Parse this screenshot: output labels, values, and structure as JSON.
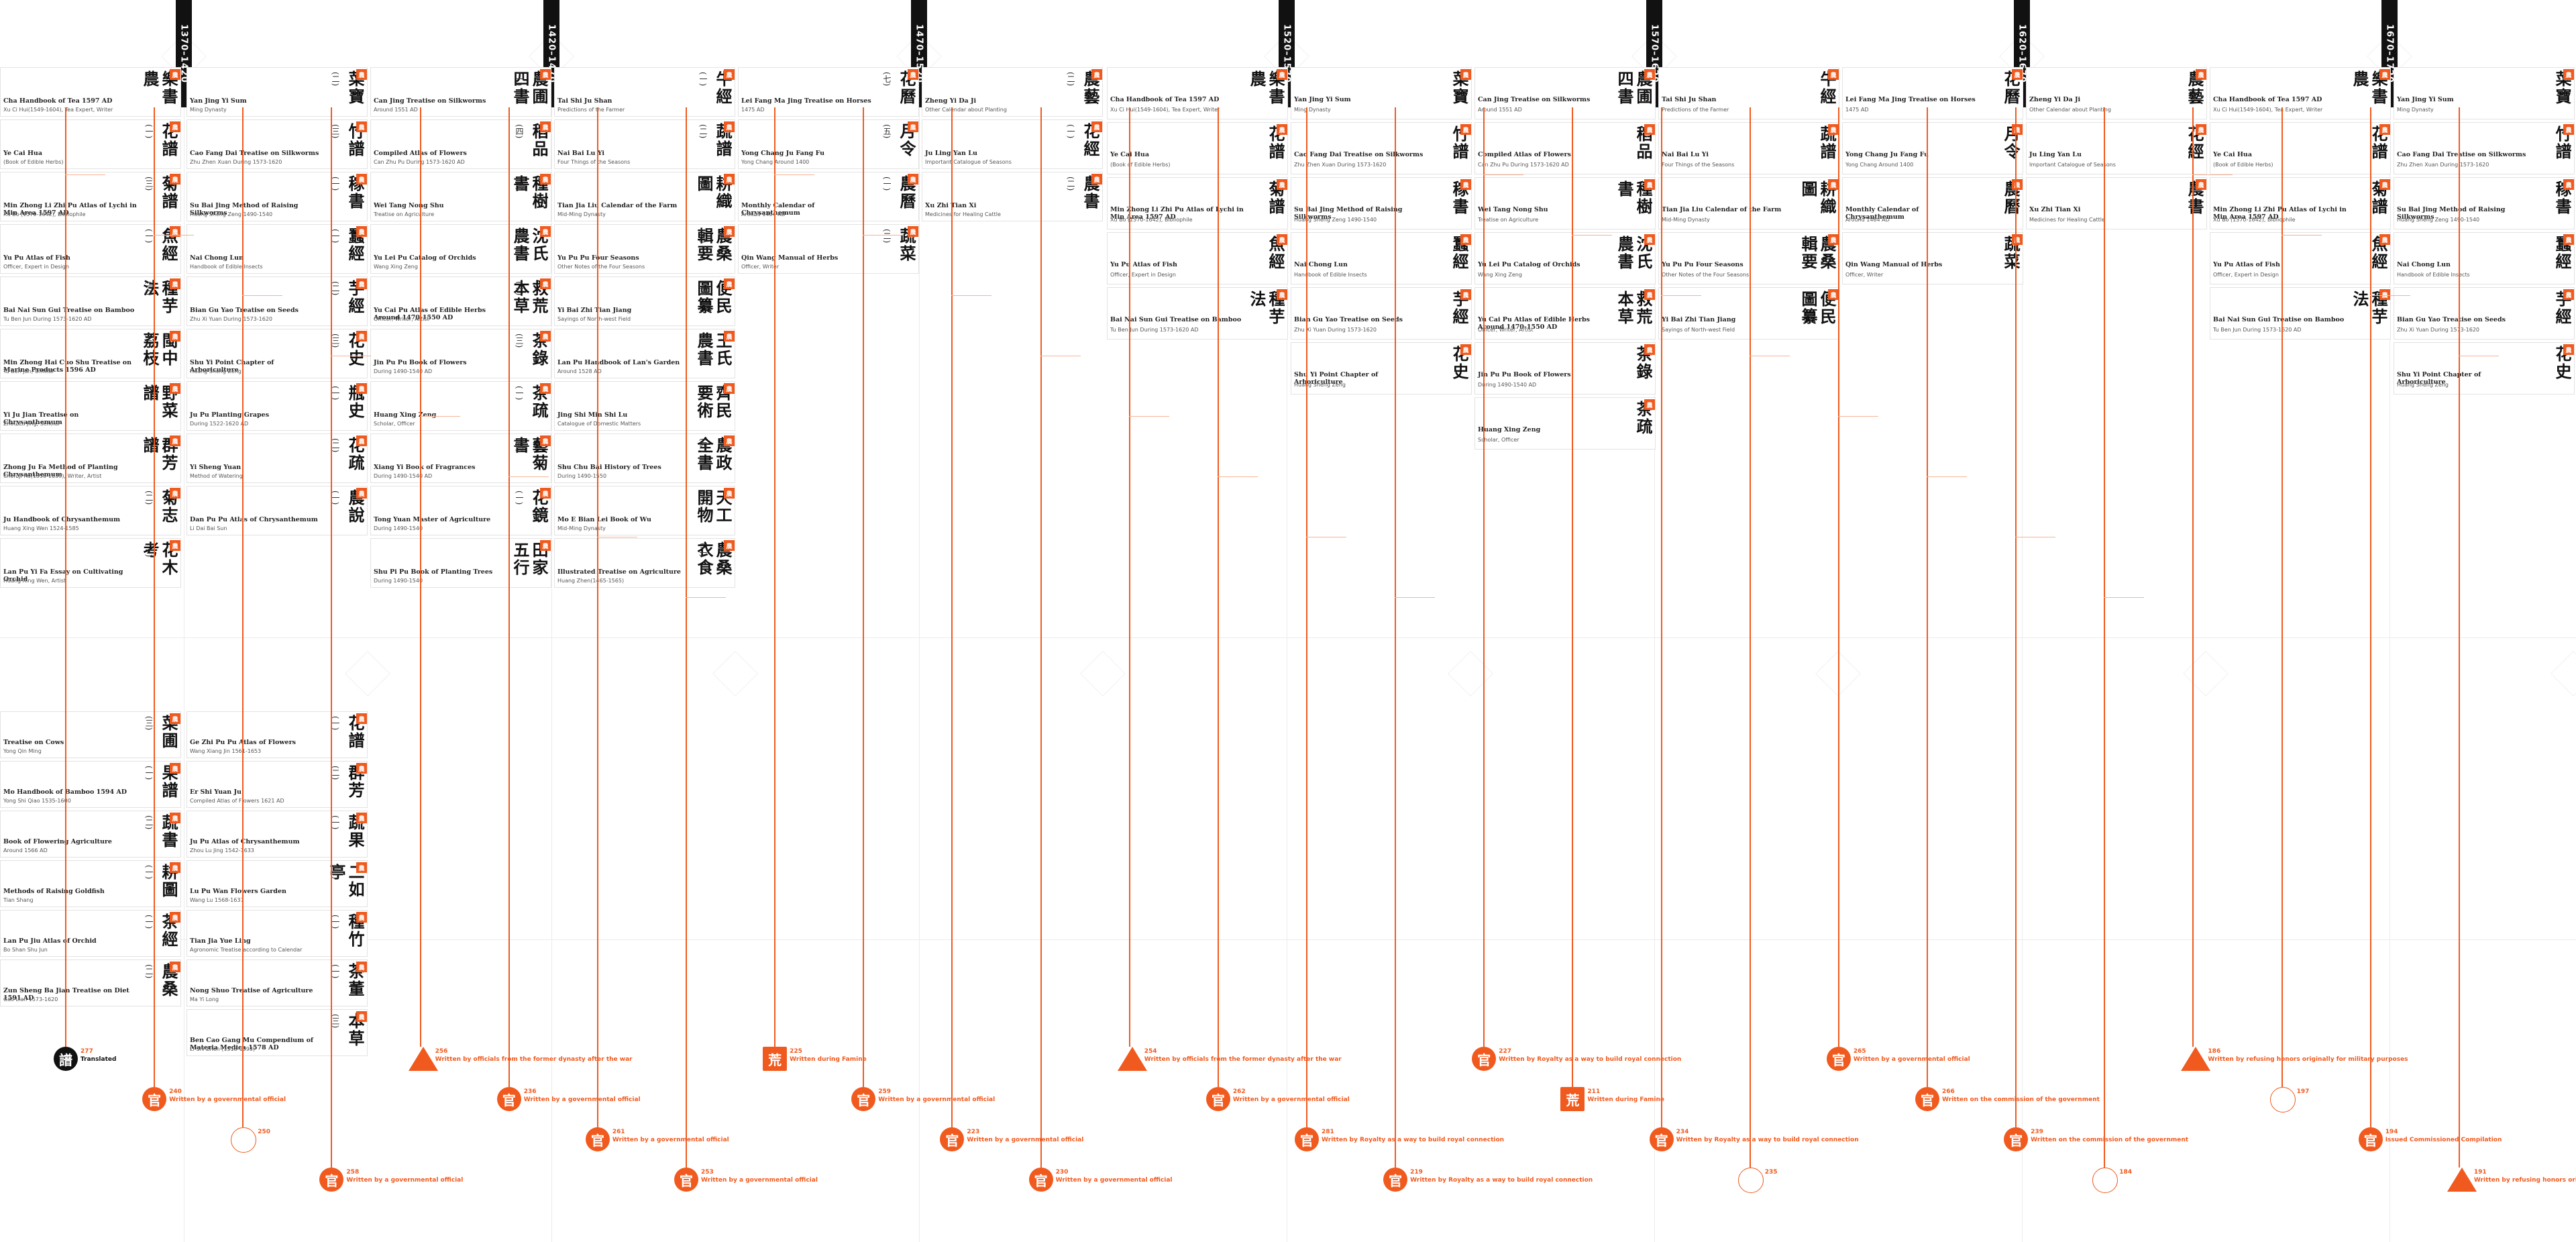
{
  "eras": [
    "1370–1420",
    "1420–1470",
    "1470–1520",
    "1520–1570",
    "1570–1620",
    "1620–1670",
    "1670–1720"
  ],
  "colors": {
    "accent": "#f05a1e",
    "light": "#f7b494",
    "dark": "#111111",
    "grid": "#ececec"
  },
  "upper_columns": [
    {
      "cards": [
        {
          "title": "樂書農",
          "num": "(二)",
          "en": "Cha Handbook of Tea 1597 AD",
          "meta": "Xu Ci Hui(1549-1604), Tea Expert, Writer"
        },
        {
          "title": "花譜",
          "num": "(一)",
          "en": "Ye Cai Hua",
          "meta": "(Book of Edible Herbs)"
        },
        {
          "title": "菊譜",
          "num": "(三)",
          "en": "Min Zhong Li Zhi Pu Atlas of Lychi in Min Area 1597 AD",
          "meta": "Xu Bo (1570-1642), Bibliophile"
        },
        {
          "title": "魚經",
          "num": "(一)",
          "en": "Yu Pu Atlas of Fish",
          "meta": "Officer, Expert in Design"
        },
        {
          "title": "種芋法",
          "num": "(二)",
          "en": "Bai Nai Sun Gui Treatise on Bamboo",
          "meta": "Tu Ben Jun During 1573-1620 AD"
        },
        {
          "title": "閩中荔枝",
          "num": "(三)",
          "en": "Min Zhong Hai Cuo Shu Treatise on Marine Products 1596 AD",
          "meta": "Tu Ben Jun, Official"
        },
        {
          "title": "野菜譜",
          "num": "(一)",
          "en": "Yi Ju Jian Treatise on Chrysanthemum",
          "meta": "Zhou Lu Jing, Scholar"
        },
        {
          "title": "群芳譜",
          "num": "(一)",
          "en": "Zhong Ju Fa Method of Planting Chrysanthemum",
          "meta": "Chen Ji Ru(1558-1639), Writer, Artist"
        },
        {
          "title": "菊志",
          "num": "(二)",
          "en": "Ju Handbook of Chrysanthemum",
          "meta": "Huang Xing Wen 1524-1585"
        },
        {
          "title": "花木考",
          "num": "(一)",
          "en": "Lan Pu Yi Fa Essay on Cultivating Orchid",
          "meta": "Huang Xing Wen, Artist"
        }
      ]
    },
    {
      "cards": [
        {
          "title": "菜寶",
          "num": "(二)",
          "en": "Yan Jing Yi Sum",
          "meta": "Ming Dynasty"
        },
        {
          "title": "竹譜",
          "num": "(三)",
          "en": "Cao Fang Dai Treatise on Silkworms",
          "meta": "Zhu Zhen Xuan During 1573-1620"
        },
        {
          "title": "稼書",
          "num": "(一)",
          "en": "Su Bai Jing Method of Raising Silkworms",
          "meta": "Huang Sheng Zeng 1490-1540"
        },
        {
          "title": "蠶經",
          "num": "(一)",
          "en": "Nai Chong Lun",
          "meta": "Handbook of Edible Insects"
        },
        {
          "title": "芋經",
          "num": "(二)",
          "en": "Bian Gu Yao Treatise on Seeds",
          "meta": "Zhu Xi Yuan During 1573-1620"
        },
        {
          "title": "花史",
          "num": "(三)",
          "en": "Shu Yi Point Chapter of Arboriculture",
          "meta": "Huang Sheng Zeng"
        },
        {
          "title": "瓶史",
          "num": "(一)",
          "en": "Ju Pu Planting Grapes",
          "meta": "During 1522-1620 AD"
        },
        {
          "title": "花疏",
          "num": "(二)",
          "en": "Yi Sheng Yuan",
          "meta": "Method of Watering"
        },
        {
          "title": "農說",
          "num": "(一)",
          "en": "Dan Pu Pu Atlas of Chrysanthemum",
          "meta": "Li Dai Bai Sun"
        }
      ]
    },
    {
      "cards": [
        {
          "title": "農圃四書",
          "num": "(一)",
          "en": "Can Jing Treatise on Silkworms",
          "meta": "Around 1551 AD"
        },
        {
          "title": "稻品",
          "num": "(四)",
          "en": "Compiled Atlas of Flowers",
          "meta": "Can Zhu Pu During 1573-1620 AD"
        },
        {
          "title": "種樹書",
          "num": "(一)",
          "en": "Wei Tang Nong Shu",
          "meta": "Treatise on Agriculture"
        },
        {
          "title": "沈氏農書",
          "num": "(二)",
          "en": "Yu Lei Pu Catalog of Orchids",
          "meta": "Wang Xing Zeng"
        },
        {
          "title": "救荒本草",
          "num": "(一)",
          "en": "Yu Cai Pu Atlas of Edible Herbs Around 1470-1550 AD",
          "meta": "Officer, Writer, Artist"
        },
        {
          "title": "茶錄",
          "num": "(三)",
          "en": "Jin Pu Pu Book of Flowers",
          "meta": "During 1490-1540 AD"
        },
        {
          "title": "茶疏",
          "num": "(一)",
          "en": "Huang Xing Zeng",
          "meta": "Scholar, Officer"
        },
        {
          "title": "藝菊書",
          "num": "(四)",
          "en": "Xiang Yi Book of Fragrances",
          "meta": "During 1490-1540 AD"
        },
        {
          "title": "花鏡",
          "num": "(一)",
          "en": "Tong Yuan Master of Agriculture",
          "meta": "During 1490-1540"
        },
        {
          "title": "田家五行",
          "num": "(一)",
          "en": "Shu Pi Pu Book of Planting Trees",
          "meta": "During 1490-1540"
        }
      ]
    },
    {
      "cards": [
        {
          "title": "牛經",
          "num": "(一)",
          "en": "Tai Shi Ju Shan",
          "meta": "Predictions of the Farmer"
        },
        {
          "title": "蔬譜",
          "num": "(二)",
          "en": "Nai Bai Lu Yi",
          "meta": "Four Things of the Seasons"
        },
        {
          "title": "耕織圖",
          "num": "(一)",
          "en": "Tian Jia Liu Calendar of the Farm",
          "meta": "Mid-Ming Dynasty"
        },
        {
          "title": "農桑輯要",
          "num": "(三)",
          "en": "Yu Pu Pu Four Seasons",
          "meta": "Other Notes of the Four Seasons"
        },
        {
          "title": "便民圖纂",
          "num": "(一)",
          "en": "Yi Bai Zhi Tian Jiang",
          "meta": "Sayings of North-west Field"
        },
        {
          "title": "王氏農書",
          "num": "(二)",
          "en": "Lan Pu Handbook of Lan's Garden",
          "meta": "Around 1528 AD"
        },
        {
          "title": "齊民要術",
          "num": "(一)",
          "en": "Jing Shi Min Shi Lu",
          "meta": "Catalogue of Domestic Matters"
        },
        {
          "title": "農政全書",
          "num": "(四)",
          "en": "Shu Chu Bai History of Trees",
          "meta": "During 1490-1550"
        },
        {
          "title": "天工開物",
          "num": "(一)",
          "en": "Mo E Bian Lei Book of Wu",
          "meta": "Mid-Ming Dynasty"
        },
        {
          "title": "農桑衣食",
          "num": "(二)",
          "en": "Illustrated Treatise on Agriculture",
          "meta": "Huang Zhen(1465-1565)"
        }
      ]
    },
    {
      "cards": [
        {
          "title": "花曆",
          "num": "(七)",
          "en": "Lei Fang Ma Jing Treatise on Horses",
          "meta": "1475 AD"
        },
        {
          "title": "月令",
          "num": "(五)",
          "en": "Yong Chang Ju Fang Fu",
          "meta": "Yong Chang Around 1400"
        },
        {
          "title": "農曆",
          "num": "(一)",
          "en": "Monthly Calendar of Chrysanthemum",
          "meta": "Around 1464 AD"
        },
        {
          "title": "蔬菜",
          "num": "(二)",
          "en": "Qin Wang Manual of Herbs",
          "meta": "Officer, Writer"
        }
      ]
    },
    {
      "cards": [
        {
          "title": "農藝",
          "num": "(二)",
          "en": "Zheng Yi Da Ji",
          "meta": "Other Calendar about Planting"
        },
        {
          "title": "花經",
          "num": "(一)",
          "en": "Ju Ling Yan Lu",
          "meta": "Important Catalogue of Seasons"
        },
        {
          "title": "農書",
          "num": "(二)",
          "en": "Xu Zhi Tian Xi",
          "meta": "Medicines for Healing Cattle"
        }
      ]
    }
  ],
  "lower_columns": [
    {
      "cards": [
        {
          "title": "菜圃",
          "num": "(三)",
          "en": "Treatise on Cows",
          "meta": "Yong Qin Ming"
        },
        {
          "title": "果譜",
          "num": "(一)",
          "en": "Mo Handbook of Bamboo 1594 AD",
          "meta": "Yong Shi Qiao 1535-1600"
        },
        {
          "title": "蔬書",
          "num": "(二)",
          "en": "Book of Flowering Agriculture",
          "meta": "Around 1566 AD"
        },
        {
          "title": "耕圖",
          "num": "(一)",
          "en": "Methods of Raising Goldfish",
          "meta": "Tian Shang"
        },
        {
          "title": "茶經",
          "num": "(一)",
          "en": "Lan Pu Jiu Atlas of Orchid",
          "meta": "Bo Shan Shu Jun"
        },
        {
          "title": "農桑",
          "num": "(二)",
          "en": "Zun Sheng Ba Jian Treatise on Diet 1591 AD",
          "meta": "Gao Lian 1573-1620"
        }
      ]
    },
    {
      "cards": [
        {
          "title": "花譜",
          "num": "(一)",
          "en": "Ge Zhi Pu Pu Atlas of Flowers",
          "meta": "Wang Xiang Jin 1561-1653"
        },
        {
          "title": "群芳",
          "num": "(二)",
          "en": "Er Shi Yuan Ju",
          "meta": "Compiled Atlas of Flowers 1621 AD"
        },
        {
          "title": "蔬果",
          "num": "(一)",
          "en": "Ju Pu Atlas of Chrysanthemum",
          "meta": "Zhou Lu Jing 1542-1633"
        },
        {
          "title": "二如亭",
          "num": "(二)",
          "en": "Lu Pu Wan Flowers Garden",
          "meta": "Wang Lu 1568-1637"
        },
        {
          "title": "種竹",
          "num": "(一)",
          "en": "Tian Jia Yue Ling",
          "meta": "Agronomic Treatise according to Calendar"
        },
        {
          "title": "茶董",
          "num": "(一)",
          "en": "Nong Shuo Treatise of Agriculture",
          "meta": "Ma Yi Long"
        },
        {
          "title": "本草",
          "num": "(三)",
          "en": "Ben Cao Gang Mu Compendium of Materia Medica 1578 AD",
          "meta": "Li Shi Zhen (1518-1593)"
        }
      ]
    }
  ],
  "markers": [
    {
      "glyph": "譜",
      "style": "dark",
      "num": "277",
      "label": "Translated"
    },
    {
      "glyph": "官",
      "style": "circle",
      "num": "240",
      "label": "Written by a governmental official"
    },
    {
      "glyph": "",
      "style": "outline",
      "num": "250",
      "label": ""
    },
    {
      "glyph": "官",
      "style": "circle",
      "num": "258",
      "label": "Written by a governmental official"
    },
    {
      "glyph": "",
      "style": "tri",
      "num": "256",
      "label": "Written by officials from the former dynasty after the war"
    },
    {
      "glyph": "官",
      "style": "circle",
      "num": "236",
      "label": "Written by a governmental official"
    },
    {
      "glyph": "官",
      "style": "circle",
      "num": "261",
      "label": "Written by a governmental official"
    },
    {
      "glyph": "官",
      "style": "circle",
      "num": "253",
      "label": "Written by a governmental official"
    },
    {
      "glyph": "荒",
      "style": "sq",
      "num": "225",
      "label": "Written during Famine"
    },
    {
      "glyph": "官",
      "style": "circle",
      "num": "259",
      "label": "Written by a governmental official"
    },
    {
      "glyph": "官",
      "style": "circle",
      "num": "223",
      "label": "Written by a governmental official"
    },
    {
      "glyph": "官",
      "style": "circle",
      "num": "230",
      "label": "Written by a governmental official"
    },
    {
      "glyph": "",
      "style": "tri",
      "num": "254",
      "label": "Written by officials from the former dynasty after the war"
    },
    {
      "glyph": "官",
      "style": "circle",
      "num": "262",
      "label": "Written by a governmental official"
    },
    {
      "glyph": "官",
      "style": "circle",
      "num": "281",
      "label": "Written by Royalty as a way to build royal connection"
    },
    {
      "glyph": "官",
      "style": "circle",
      "num": "219",
      "label": "Written by Royalty as a way to build royal connection"
    },
    {
      "glyph": "官",
      "style": "circle",
      "num": "227",
      "label": "Written by Royalty as a way to build royal connection"
    },
    {
      "glyph": "荒",
      "style": "sq",
      "num": "211",
      "label": "Written during Famine"
    },
    {
      "glyph": "官",
      "style": "circle",
      "num": "234",
      "label": "Written by Royalty as a way to build royal connection"
    },
    {
      "glyph": "",
      "style": "outline",
      "num": "235",
      "label": ""
    },
    {
      "glyph": "官",
      "style": "circle",
      "num": "265",
      "label": "Written by a governmental official"
    },
    {
      "glyph": "官",
      "style": "circle",
      "num": "266",
      "label": "Written on the commission of the government"
    },
    {
      "glyph": "官",
      "style": "circle",
      "num": "239",
      "label": "Written on the commission of the government"
    },
    {
      "glyph": "",
      "style": "outline",
      "num": "184",
      "label": ""
    },
    {
      "glyph": "",
      "style": "tri",
      "num": "186",
      "label": "Written by refusing honors originally for military purposes"
    },
    {
      "glyph": "",
      "style": "outline",
      "num": "197",
      "label": ""
    },
    {
      "glyph": "官",
      "style": "circle",
      "num": "194",
      "label": "Issued Commissioned Compilation"
    },
    {
      "glyph": "",
      "style": "tri",
      "num": "191",
      "label": "Written by refusing honors originally for military purposes"
    }
  ]
}
